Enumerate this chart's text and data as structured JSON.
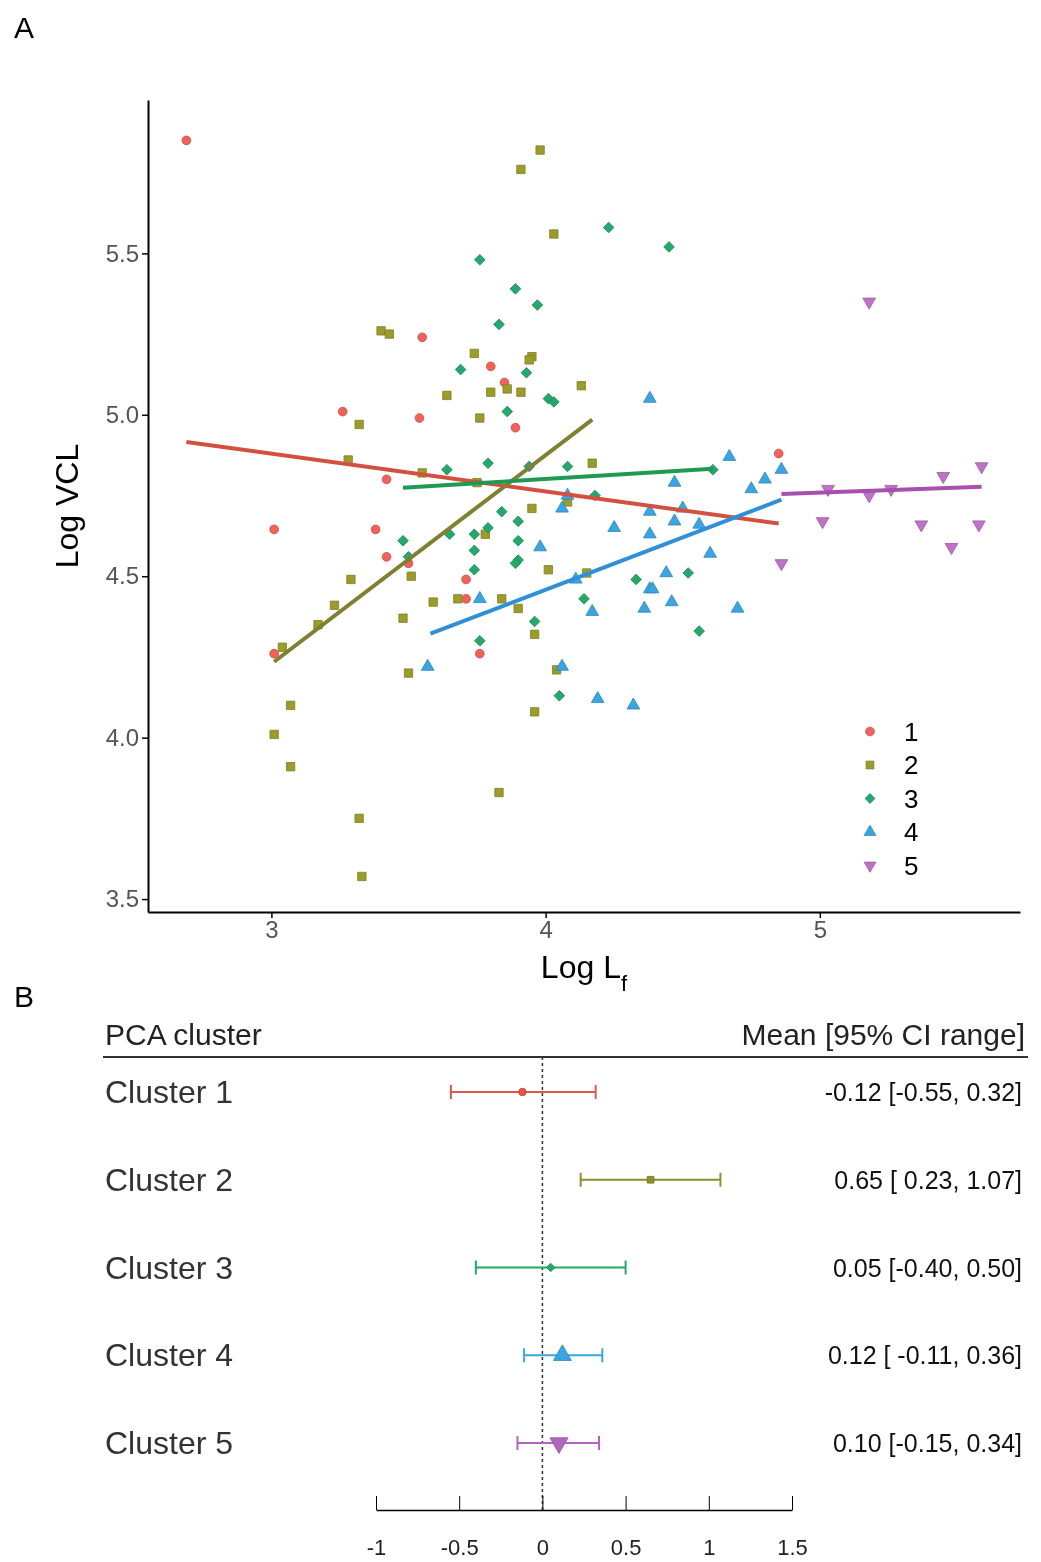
{
  "chart_data": [
    {
      "type": "scatter",
      "title": "A",
      "xlabel": "Log L$_{f}$",
      "ylabel": "Log VCL",
      "xlim": [
        2.55,
        5.73
      ],
      "ylim": [
        3.46,
        5.975
      ],
      "xticks": [
        3,
        4,
        5
      ],
      "yticks": [
        3.5,
        {
          "value": 4,
          "label": "4.0"
        },
        4.5,
        {
          "value": 5,
          "label": "5.0"
        },
        5.5
      ],
      "grid": false,
      "legend": "bottom right",
      "series": [
        {
          "name": "1",
          "color": "#f0625a",
          "marker": "circle",
          "x": [
            2.69,
            3.55,
            3.8,
            3.85,
            3.26,
            3.54,
            3.89,
            3.42,
            4.85,
            3.01,
            3.38,
            3.42,
            3.5,
            3.71,
            3.71,
            3.01,
            3.76
          ],
          "values": [
            5.85,
            5.24,
            5.15,
            5.1,
            5.01,
            4.99,
            4.96,
            4.8,
            4.88,
            4.645,
            4.645,
            4.56,
            4.54,
            4.49,
            4.43,
            4.26,
            4.26
          ]
        },
        {
          "name": "2",
          "color": "#9c9c2c",
          "marker": "square",
          "x": [
            3.98,
            3.91,
            4.03,
            3.4,
            3.43,
            3.74,
            3.95,
            3.94,
            4.13,
            3.64,
            3.8,
            3.86,
            3.91,
            3.32,
            3.76,
            3.28,
            4.17,
            3.55,
            3.75,
            3.95,
            4.08,
            3.78,
            4.01,
            4.15,
            3.29,
            3.51,
            3.23,
            3.59,
            3.68,
            3.84,
            3.48,
            3.9,
            3.17,
            3.96,
            3.04,
            3.5,
            4.04,
            3.07,
            3.96,
            3.01,
            3.07,
            3.83,
            3.32,
            3.33
          ],
          "values": [
            5.82,
            5.76,
            5.56,
            5.26,
            5.25,
            5.19,
            5.18,
            5.17,
            5.09,
            5.06,
            5.07,
            5.08,
            5.07,
            4.97,
            4.99,
            4.86,
            4.85,
            4.82,
            4.79,
            4.71,
            4.73,
            4.63,
            4.52,
            4.51,
            4.49,
            4.5,
            4.41,
            4.42,
            4.43,
            4.43,
            4.37,
            4.4,
            4.35,
            4.32,
            4.28,
            4.2,
            4.21,
            4.1,
            4.08,
            4.01,
            3.91,
            3.83,
            3.75,
            3.57
          ]
        },
        {
          "name": "3",
          "color": "#25a86b",
          "marker": "diamond",
          "x": [
            3.76,
            3.89,
            3.97,
            3.83,
            3.69,
            3.93,
            4.01,
            4.03,
            3.86,
            3.79,
            3.64,
            3.94,
            4.08,
            4.23,
            4.45,
            4.61,
            4.18,
            3.84,
            3.9,
            3.79,
            3.48,
            3.65,
            3.74,
            3.74,
            3.9,
            3.5,
            3.9,
            3.89,
            3.74,
            4.14,
            3.96,
            3.76,
            4.05,
            4.33,
            4.52,
            4.56
          ],
          "values": [
            5.48,
            5.39,
            5.34,
            5.28,
            5.14,
            5.13,
            5.05,
            5.04,
            5.01,
            4.85,
            4.83,
            4.84,
            4.84,
            5.58,
            5.52,
            4.83,
            4.75,
            4.7,
            4.67,
            4.65,
            4.61,
            4.63,
            4.63,
            4.58,
            4.61,
            4.56,
            4.55,
            4.54,
            4.52,
            4.43,
            4.36,
            4.3,
            4.13,
            4.49,
            4.51,
            4.33
          ]
        },
        {
          "name": "4",
          "color": "#3ba5e2",
          "marker": "triangle",
          "x": [
            4.38,
            4.67,
            4.86,
            4.8,
            4.75,
            4.47,
            4.38,
            4.5,
            4.25,
            4.38,
            4.47,
            4.56,
            4.6,
            4.44,
            4.11,
            4.38,
            4.39,
            4.17,
            4.36,
            4.46,
            4.7,
            4.19,
            4.32,
            4.06,
            4.08,
            3.98,
            3.76,
            3.57,
            4.06
          ],
          "values": [
            5.05,
            4.87,
            4.83,
            4.8,
            4.77,
            4.79,
            4.7,
            4.71,
            4.65,
            4.63,
            4.67,
            4.66,
            4.57,
            4.51,
            4.49,
            4.46,
            4.46,
            4.39,
            4.4,
            4.42,
            4.4,
            4.12,
            4.1,
            4.71,
            4.75,
            4.59,
            4.43,
            4.22,
            4.22
          ]
        },
        {
          "name": "5",
          "color": "#c072c8",
          "marker": "triangle-down",
          "x": [
            5.18,
            5.59,
            5.45,
            5.03,
            5.26,
            5.18,
            5.01,
            5.37,
            5.58,
            5.48,
            4.86
          ],
          "values": [
            5.35,
            4.84,
            4.81,
            4.77,
            4.77,
            4.75,
            4.67,
            4.66,
            4.66,
            4.59,
            4.54
          ]
        },
        {
          "type": "line",
          "color": "#d3503f",
          "x": [
            2.69,
            4.85
          ],
          "values": [
            4.916,
            4.663
          ]
        },
        {
          "type": "line",
          "color": "#7f8030",
          "x": [
            3.01,
            4.17
          ],
          "values": [
            4.235,
            4.985
          ]
        },
        {
          "type": "line",
          "color": "#1e9a55",
          "x": [
            3.48,
            4.61
          ],
          "values": [
            4.774,
            4.833
          ]
        },
        {
          "type": "line",
          "color": "#2e90d8",
          "x": [
            3.58,
            4.86
          ],
          "values": [
            4.322,
            4.737
          ]
        },
        {
          "type": "line",
          "color": "#a850b0",
          "x": [
            4.86,
            5.59
          ],
          "values": [
            4.755,
            4.777
          ]
        }
      ]
    },
    {
      "type": "scatter",
      "title": "B",
      "orientation": "horizontal",
      "ylabel": "PCA cluster",
      "annotations": [
        "Mean [95% CI range]",
        "-0.12 [-0.55, 0.32]",
        "0.65 [ 0.23, 1.07]",
        "0.05 [-0.40, 0.50]",
        "0.12 [ -0.11, 0.36]",
        "0.10 [-0.15, 0.34]"
      ],
      "categories": [
        "Cluster 1",
        "Cluster 2",
        "Cluster 3",
        "Cluster 4",
        "Cluster 5"
      ],
      "xlim": [
        -1,
        1.5
      ],
      "xticks": [
        -1,
        -0.5,
        0,
        0.5,
        1,
        1.5
      ],
      "ref_lines": [
        {
          "axis": "x",
          "value": 0,
          "line_style": "dotted",
          "color": "#333333"
        }
      ],
      "series": [
        {
          "color": "#e0564c",
          "marker": "circle",
          "values": [
            -0.12,
            null,
            null,
            null,
            null
          ],
          "errors": [
            [
              -0.55,
              0.32
            ],
            null,
            null,
            null,
            null
          ]
        },
        {
          "color": "#8f8f2a",
          "marker": "square",
          "values": [
            null,
            0.65,
            null,
            null,
            null
          ],
          "errors": [
            null,
            [
              0.23,
              1.07
            ],
            null,
            null,
            null
          ]
        },
        {
          "color": "#25a86b",
          "marker": "diamond",
          "values": [
            null,
            null,
            0.05,
            null,
            null
          ],
          "errors": [
            null,
            null,
            [
              -0.4,
              0.5
            ],
            null,
            null
          ]
        },
        {
          "color": "#3ba5e2",
          "marker": "triangle",
          "values": [
            null,
            null,
            null,
            0.12,
            null
          ],
          "errors": [
            null,
            null,
            null,
            [
              -0.11,
              0.36
            ],
            null
          ]
        },
        {
          "color": "#b463c0",
          "marker": "triangle-down",
          "values": [
            null,
            null,
            null,
            null,
            0.1
          ],
          "errors": [
            null,
            null,
            null,
            null,
            [
              -0.15,
              0.34
            ]
          ]
        }
      ]
    }
  ]
}
